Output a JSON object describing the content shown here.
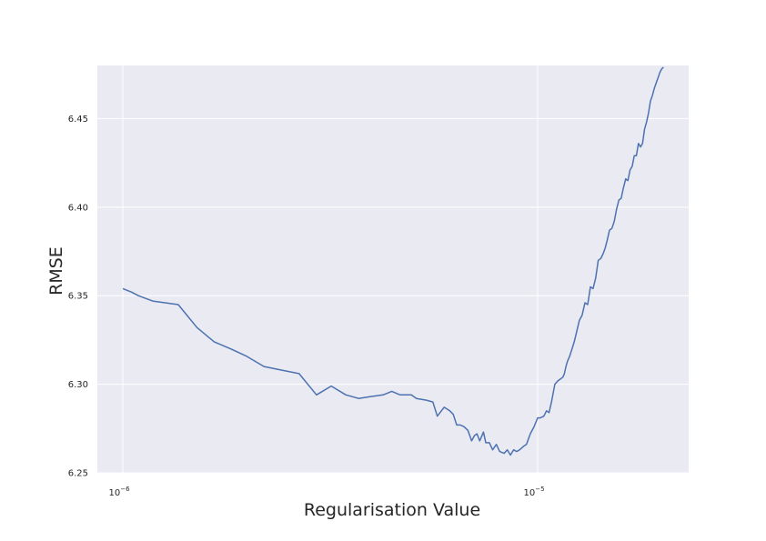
{
  "chart_data": {
    "type": "line",
    "title": "",
    "xlabel": "Regularisation Value",
    "ylabel": "RMSE",
    "x_scale": "log",
    "xlim": [
      1e-06,
      2.1e-05
    ],
    "ylim": [
      6.25,
      6.48
    ],
    "x_ticks": [
      {
        "base": "10",
        "exp": "−6",
        "value": 1e-06
      },
      {
        "base": "10",
        "exp": "−5",
        "value": 1e-05
      }
    ],
    "y_ticks": [
      "6.25",
      "6.30",
      "6.35",
      "6.40",
      "6.45"
    ],
    "grid": true,
    "background_color": "#eaeaf2",
    "grid_color": "#ffffff",
    "line_color": "#4c72b0",
    "series": [
      {
        "x": [
          1e-06,
          1.05e-06,
          1.09e-06,
          1.18e-06,
          1.36e-06,
          1.51e-06,
          1.66e-06,
          1.82e-06,
          1.98e-06,
          2.19e-06,
          2.41e-06,
          2.66e-06,
          2.93e-06,
          3.18e-06,
          3.45e-06,
          3.7e-06,
          3.95e-06,
          4.24e-06,
          4.45e-06,
          4.66e-06,
          4.96e-06,
          5.1e-06,
          5.39e-06,
          5.59e-06,
          5.73e-06,
          5.95e-06,
          6.14e-06,
          6.26e-06,
          6.38e-06,
          6.51e-06,
          6.65e-06,
          6.79e-06,
          6.93e-06,
          7.04e-06,
          7.14e-06,
          7.25e-06,
          7.4e-06,
          7.5e-06,
          7.65e-06,
          7.79e-06,
          7.95e-06,
          8.1e-06,
          8.3e-06,
          8.45e-06,
          8.6e-06,
          8.75e-06,
          8.9e-06,
          9.05e-06,
          9.25e-06,
          9.4e-06,
          9.6e-06,
          9.8e-06,
          1e-05,
          1.015e-05,
          1.035e-05,
          1.05e-05,
          1.065e-05,
          1.08e-05,
          1.1e-05,
          1.12e-05,
          1.135e-05,
          1.15e-05,
          1.16e-05,
          1.17e-05,
          1.18e-05,
          1.195e-05,
          1.21e-05,
          1.225e-05,
          1.24e-05,
          1.26e-05,
          1.28e-05,
          1.3e-05,
          1.32e-05,
          1.34e-05,
          1.36e-05,
          1.38e-05,
          1.4e-05,
          1.42e-05,
          1.44e-05,
          1.455e-05,
          1.47e-05,
          1.49e-05,
          1.51e-05,
          1.53e-05,
          1.55e-05,
          1.57e-05,
          1.59e-05,
          1.61e-05,
          1.63e-05,
          1.65e-05,
          1.67e-05,
          1.69e-05,
          1.71e-05,
          1.73e-05,
          1.75e-05,
          1.77e-05,
          1.79e-05,
          1.81e-05,
          1.83e-05,
          1.85e-05,
          1.87e-05,
          1.89e-05,
          1.91e-05,
          1.93e-05,
          1.95e-05,
          1.97e-05,
          1.99e-05,
          2.01e-05
        ],
        "y": [
          6.354,
          6.352,
          6.35,
          6.347,
          6.345,
          6.332,
          6.324,
          6.32,
          6.316,
          6.31,
          6.308,
          6.306,
          6.294,
          6.299,
          6.294,
          6.292,
          6.293,
          6.294,
          6.296,
          6.294,
          6.294,
          6.292,
          6.291,
          6.29,
          6.282,
          6.287,
          6.285,
          6.283,
          6.277,
          6.277,
          6.276,
          6.274,
          6.268,
          6.271,
          6.272,
          6.268,
          6.273,
          6.267,
          6.267,
          6.263,
          6.266,
          6.262,
          6.261,
          6.263,
          6.26,
          6.263,
          6.262,
          6.263,
          6.265,
          6.266,
          6.272,
          6.276,
          6.281,
          6.281,
          6.282,
          6.285,
          6.284,
          6.29,
          6.3,
          6.302,
          6.303,
          6.304,
          6.306,
          6.31,
          6.313,
          6.316,
          6.32,
          6.324,
          6.329,
          6.336,
          6.339,
          6.346,
          6.345,
          6.355,
          6.354,
          6.36,
          6.37,
          6.371,
          6.374,
          6.377,
          6.381,
          6.387,
          6.388,
          6.392,
          6.399,
          6.404,
          6.405,
          6.411,
          6.416,
          6.415,
          6.421,
          6.423,
          6.429,
          6.429,
          6.436,
          6.434,
          6.436,
          6.444,
          6.448,
          6.453,
          6.46,
          6.463,
          6.467,
          6.47,
          6.473,
          6.476,
          6.478,
          6.479
        ]
      }
    ]
  }
}
